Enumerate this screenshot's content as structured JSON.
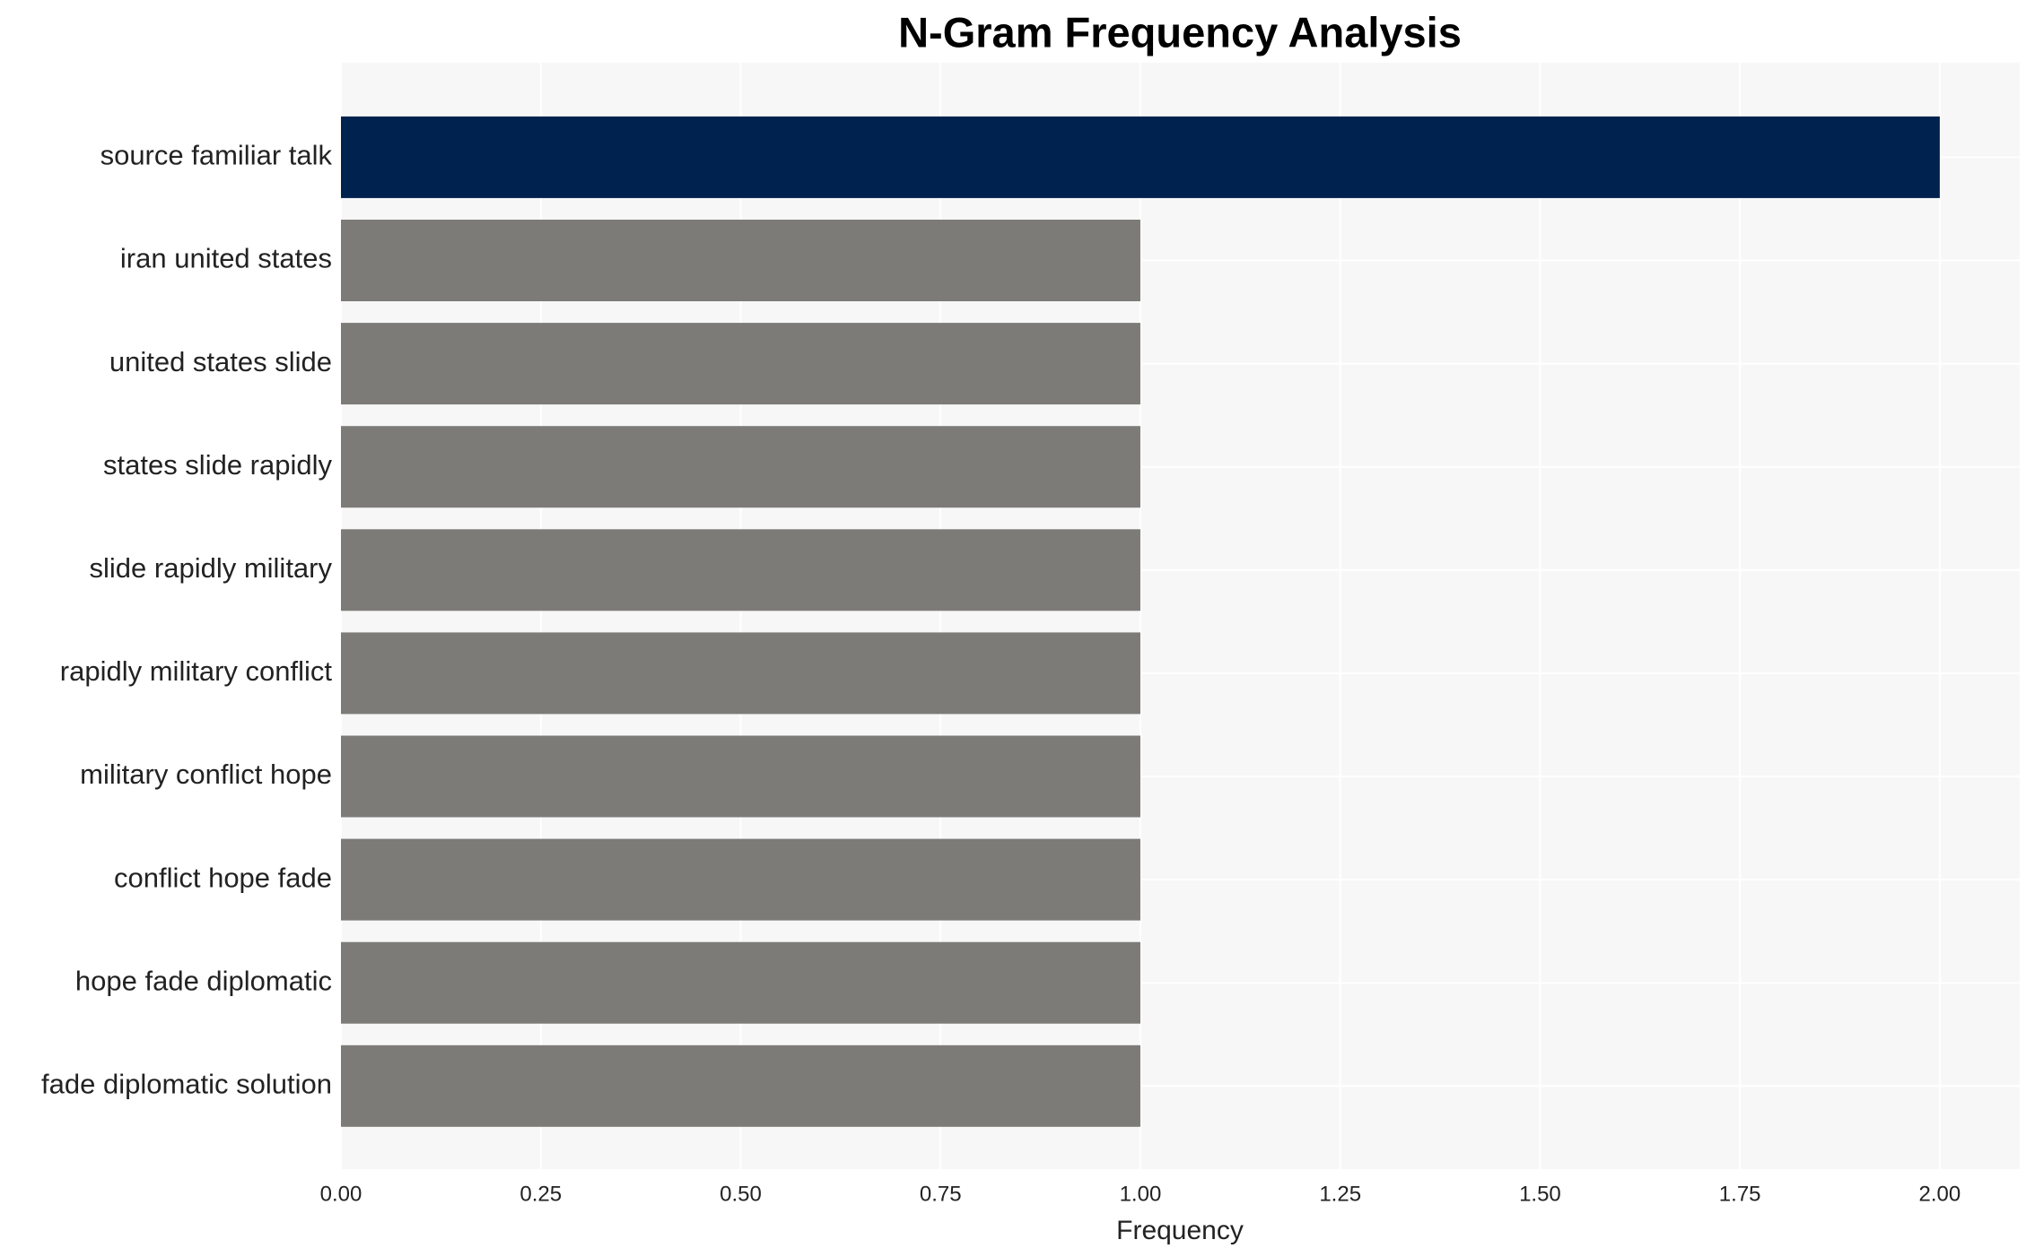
{
  "chart_data": {
    "type": "bar",
    "orientation": "horizontal",
    "title": "N-Gram Frequency Analysis",
    "x_label": "Frequency",
    "categories": [
      "source familiar talk",
      "iran united states",
      "united states slide",
      "states slide rapidly",
      "slide rapidly military",
      "rapidly military conflict",
      "military conflict hope",
      "conflict hope fade",
      "hope fade diplomatic",
      "fade diplomatic solution"
    ],
    "values": [
      2,
      1,
      1,
      1,
      1,
      1,
      1,
      1,
      1,
      1
    ],
    "colors": [
      "#00224e",
      "#7c7b78",
      "#7c7b78",
      "#7c7b78",
      "#7c7b78",
      "#7c7b78",
      "#7c7b78",
      "#7c7b78",
      "#7c7b78",
      "#7c7b78"
    ],
    "xlim": [
      0,
      2.1
    ],
    "xticks": [
      {
        "value": 0,
        "label": "0.00"
      },
      {
        "value": 0.25,
        "label": "0.25"
      },
      {
        "value": 0.5,
        "label": "0.50"
      },
      {
        "value": 0.75,
        "label": "0.75"
      },
      {
        "value": 1,
        "label": "1.00"
      },
      {
        "value": 1.25,
        "label": "1.25"
      },
      {
        "value": 1.5,
        "label": "1.50"
      },
      {
        "value": 1.75,
        "label": "1.75"
      },
      {
        "value": 2,
        "label": "2.00"
      }
    ],
    "grid": true
  }
}
